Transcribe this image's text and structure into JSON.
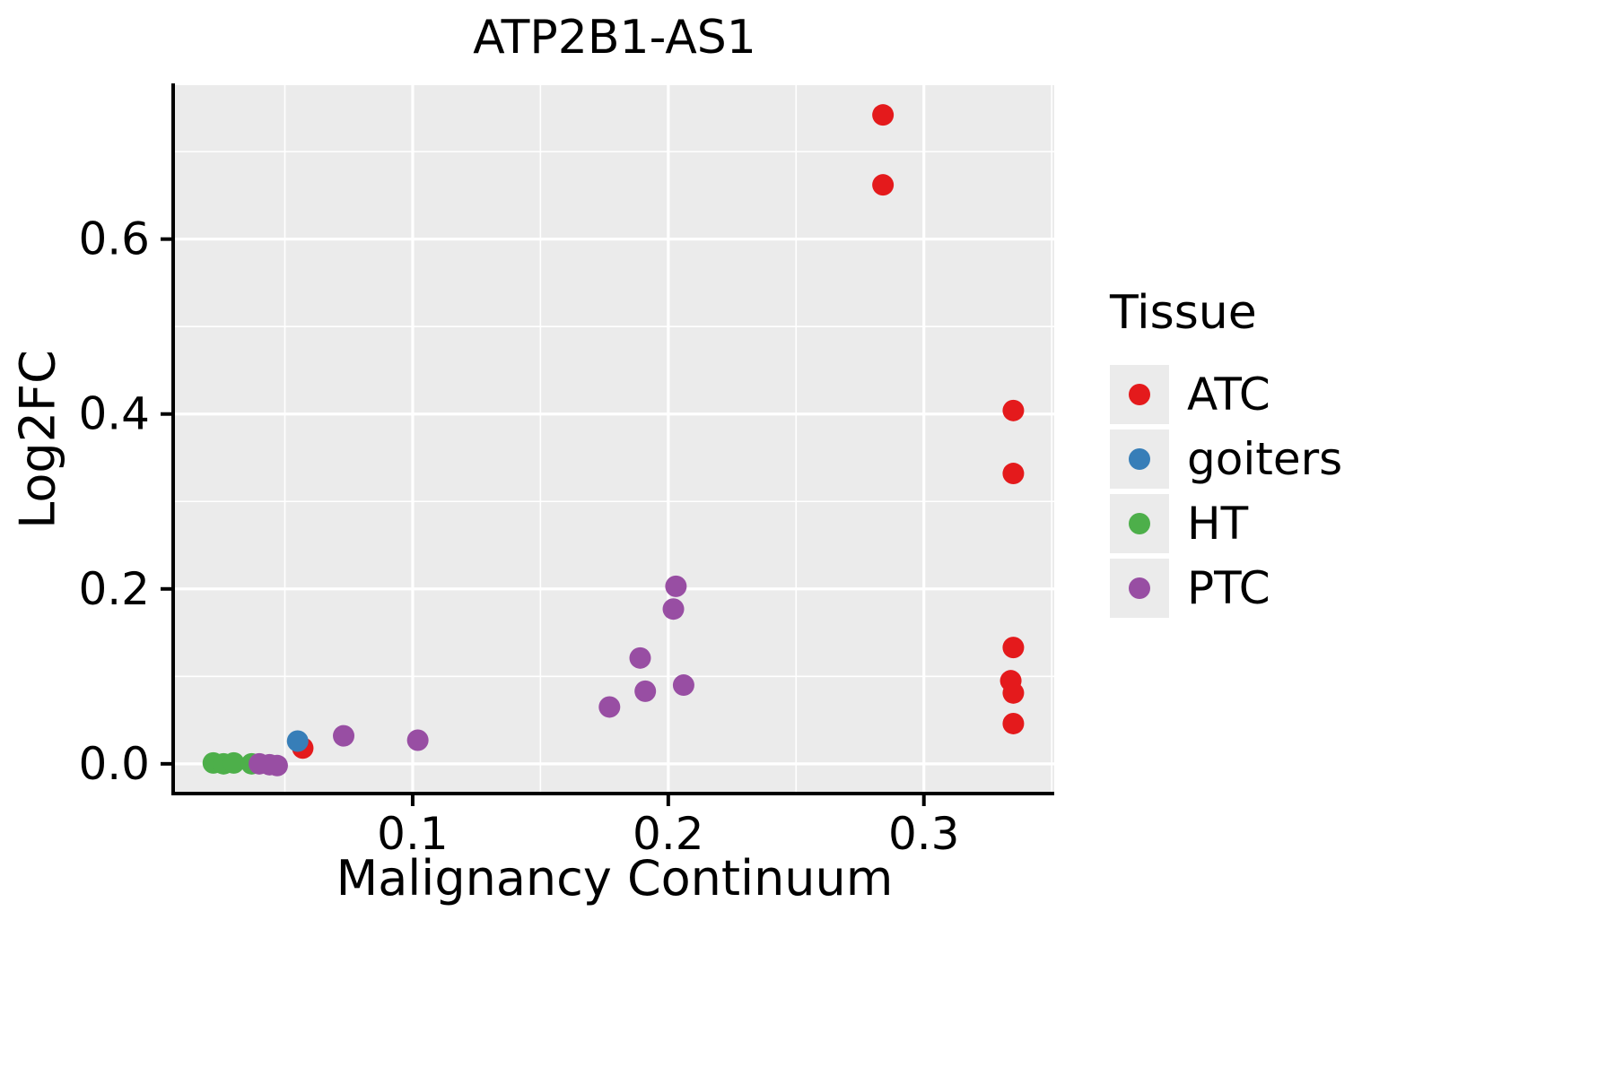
{
  "chart_data": {
    "type": "scatter",
    "title": "ATP2B1-AS1",
    "xlabel": "Malignancy Continuum",
    "ylabel": "Log2FC",
    "legend_title": "Tissue",
    "xlim": [
      0.007,
      0.351
    ],
    "ylim": [
      -0.034,
      0.776
    ],
    "x_ticks": [
      {
        "v": 0.1,
        "label": "0.1"
      },
      {
        "v": 0.2,
        "label": "0.2"
      },
      {
        "v": 0.3,
        "label": "0.3"
      }
    ],
    "y_ticks": [
      {
        "v": 0.0,
        "label": "0.0"
      },
      {
        "v": 0.2,
        "label": "0.2"
      },
      {
        "v": 0.4,
        "label": "0.4"
      },
      {
        "v": 0.6,
        "label": "0.6"
      }
    ],
    "x_minor": [
      0.05,
      0.15,
      0.25,
      0.35
    ],
    "y_minor": [
      0.1,
      0.3,
      0.5,
      0.7
    ],
    "panel_bg": "#EBEBEB",
    "grid_color": "#FFFFFF",
    "axis_color": "#000000",
    "legend_position": "right",
    "grid": true,
    "series": [
      {
        "name": "ATC",
        "color": "#E41A1C",
        "points": [
          [
            0.284,
            0.742
          ],
          [
            0.284,
            0.662
          ],
          [
            0.335,
            0.404
          ],
          [
            0.335,
            0.332
          ],
          [
            0.335,
            0.133
          ],
          [
            0.334,
            0.095
          ],
          [
            0.335,
            0.081
          ],
          [
            0.335,
            0.046
          ],
          [
            0.057,
            0.018
          ]
        ]
      },
      {
        "name": "goiters",
        "color": "#377EB8",
        "points": [
          [
            0.055,
            0.026
          ]
        ]
      },
      {
        "name": "HT",
        "color": "#4DAF4A",
        "points": [
          [
            0.022,
            0.001
          ],
          [
            0.026,
            0.0
          ],
          [
            0.03,
            0.001
          ],
          [
            0.037,
            0.0
          ]
        ]
      },
      {
        "name": "PTC",
        "color": "#984EA3",
        "points": [
          [
            0.04,
            0.0
          ],
          [
            0.044,
            -0.001
          ],
          [
            0.047,
            -0.002
          ],
          [
            0.073,
            0.032
          ],
          [
            0.102,
            0.027
          ],
          [
            0.177,
            0.065
          ],
          [
            0.189,
            0.121
          ],
          [
            0.191,
            0.083
          ],
          [
            0.202,
            0.177
          ],
          [
            0.203,
            0.203
          ],
          [
            0.206,
            0.09
          ]
        ]
      }
    ]
  }
}
